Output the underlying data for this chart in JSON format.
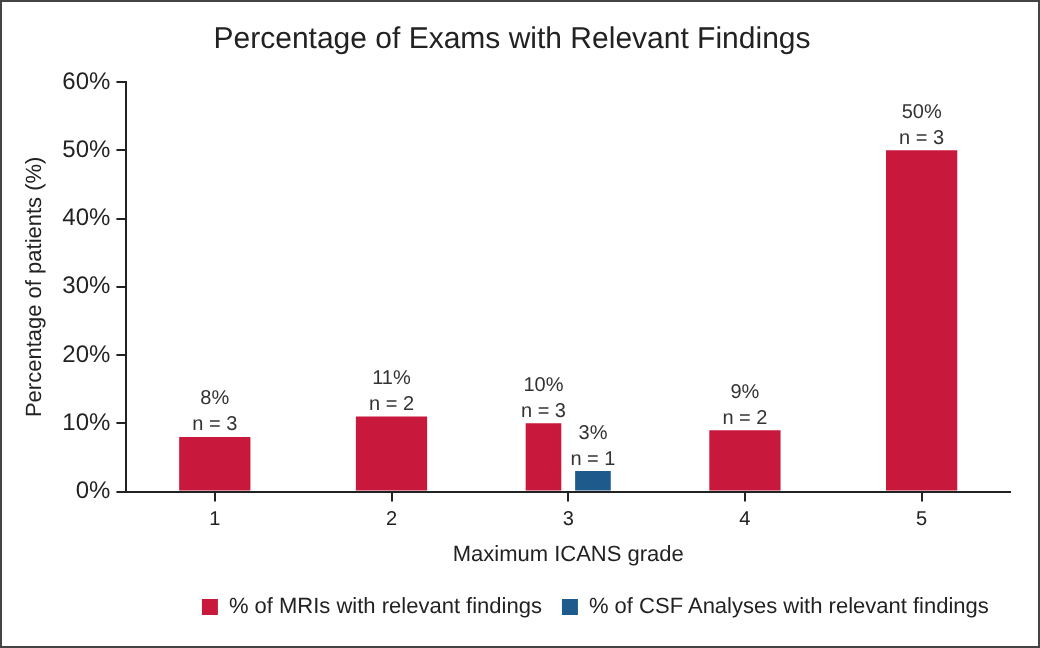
{
  "chart_data": {
    "type": "bar",
    "title": "Percentage of Exams with Relevant Findings",
    "xlabel": "Maximum ICANS grade",
    "ylabel": "Percentage of patients (%)",
    "categories": [
      "1",
      "2",
      "3",
      "4",
      "5"
    ],
    "series": [
      {
        "name": "% of MRIs with relevant findings",
        "color": "#c8193c",
        "values": [
          8,
          11,
          10,
          9,
          50
        ],
        "value_labels": [
          "8%\nn = 3",
          "11%\nn = 2",
          "10%\nn = 3",
          "9%\nn = 2",
          "50%\nn = 3"
        ]
      },
      {
        "name": "% of CSF Analyses with relevant findings",
        "color": "#1f5a8c",
        "values": [
          null,
          null,
          3,
          null,
          null
        ],
        "value_labels": [
          null,
          null,
          "3%\nn = 1",
          null,
          null
        ]
      }
    ],
    "ylim": [
      0,
      60
    ],
    "yticks": [
      {
        "value": 0,
        "label": "0%"
      },
      {
        "value": 10,
        "label": "10%"
      },
      {
        "value": 20,
        "label": "20%"
      },
      {
        "value": 30,
        "label": "30%"
      },
      {
        "value": 40,
        "label": "40%"
      },
      {
        "value": 50,
        "label": "50%"
      },
      {
        "value": 60,
        "label": "60%"
      }
    ],
    "grid": false,
    "legend": "bottom"
  }
}
